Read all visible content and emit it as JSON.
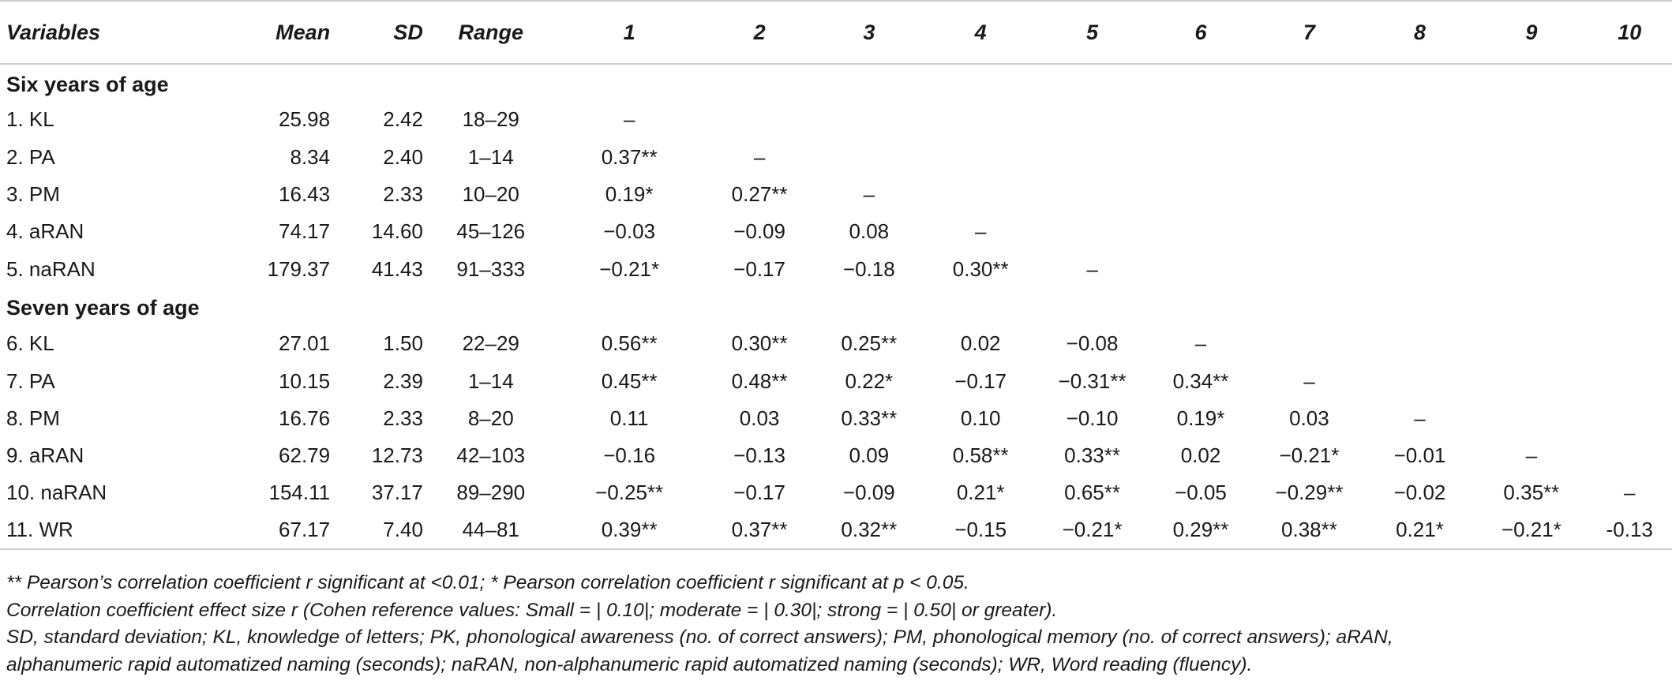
{
  "headers": {
    "variables": "Variables",
    "mean": "Mean",
    "sd": "SD",
    "range": "Range",
    "cols": [
      "1",
      "2",
      "3",
      "4",
      "5",
      "6",
      "7",
      "8",
      "9",
      "10"
    ]
  },
  "sections": [
    {
      "title": "Six years of age",
      "rows": [
        {
          "name": "1. KL",
          "mean": "25.98",
          "sd": "2.42",
          "range": "18–29",
          "corr": [
            "–",
            "",
            "",
            "",
            "",
            "",
            "",
            "",
            "",
            ""
          ]
        },
        {
          "name": "2. PA",
          "mean": "8.34",
          "sd": "2.40",
          "range": "1–14",
          "corr": [
            "0.37**",
            "–",
            "",
            "",
            "",
            "",
            "",
            "",
            "",
            ""
          ]
        },
        {
          "name": "3. PM",
          "mean": "16.43",
          "sd": "2.33",
          "range": "10–20",
          "corr": [
            "0.19*",
            "0.27**",
            "–",
            "",
            "",
            "",
            "",
            "",
            "",
            ""
          ]
        },
        {
          "name": "4. aRAN",
          "mean": "74.17",
          "sd": "14.60",
          "range": "45–126",
          "corr": [
            "−0.03",
            "−0.09",
            "0.08",
            "–",
            "",
            "",
            "",
            "",
            "",
            ""
          ]
        },
        {
          "name": "5. naRAN",
          "mean": "179.37",
          "sd": "41.43",
          "range": "91–333",
          "corr": [
            "−0.21*",
            "−0.17",
            "−0.18",
            "0.30**",
            "–",
            "",
            "",
            "",
            "",
            ""
          ]
        }
      ]
    },
    {
      "title": "Seven years of age",
      "rows": [
        {
          "name": "6. KL",
          "mean": "27.01",
          "sd": "1.50",
          "range": "22–29",
          "corr": [
            "0.56**",
            "0.30**",
            "0.25**",
            "0.02",
            "−0.08",
            "–",
            "",
            "",
            "",
            ""
          ]
        },
        {
          "name": "7. PA",
          "mean": "10.15",
          "sd": "2.39",
          "range": "1–14",
          "corr": [
            "0.45**",
            "0.48**",
            "0.22*",
            "−0.17",
            "−0.31**",
            "0.34**",
            "–",
            "",
            "",
            ""
          ]
        },
        {
          "name": "8. PM",
          "mean": "16.76",
          "sd": "2.33",
          "range": "8–20",
          "corr": [
            "0.11",
            "0.03",
            "0.33**",
            "0.10",
            "−0.10",
            "0.19*",
            "0.03",
            "–",
            "",
            ""
          ]
        },
        {
          "name": "9. aRAN",
          "mean": "62.79",
          "sd": "12.73",
          "range": "42–103",
          "corr": [
            "−0.16",
            "−0.13",
            "0.09",
            "0.58**",
            "0.33**",
            "0.02",
            "−0.21*",
            "−0.01",
            "–",
            ""
          ]
        },
        {
          "name": "10. naRAN",
          "mean": "154.11",
          "sd": "37.17",
          "range": "89–290",
          "corr": [
            "−0.25**",
            "−0.17",
            "−0.09",
            "0.21*",
            "0.65**",
            "−0.05",
            "−0.29**",
            "−0.02",
            "0.35**",
            "–"
          ]
        },
        {
          "name": "11. WR",
          "mean": "67.17",
          "sd": "7.40",
          "range": "44–81",
          "corr": [
            "0.39**",
            "0.37**",
            "0.32**",
            "−0.15",
            "−0.21*",
            "0.29**",
            "0.38**",
            "0.21*",
            "−0.21*",
            "-0.13"
          ]
        }
      ]
    }
  ],
  "notes": [
    "** Pearson’s correlation coefficient r significant at <0.01; * Pearson correlation coefficient r significant at p < 0.05.",
    "Correlation coefficient effect size r (Cohen reference values: Small = | 0.10|; moderate = | 0.30|; strong = | 0.50|  or greater).",
    "SD, standard deviation; KL, knowledge of letters; PK, phonological awareness (no. of correct answers); PM, phonological memory (no. of correct answers); aRAN,",
    "alphanumeric rapid automatized naming (seconds); naRAN, non-alphanumeric rapid automatized naming (seconds); WR, Word reading (fluency)."
  ]
}
